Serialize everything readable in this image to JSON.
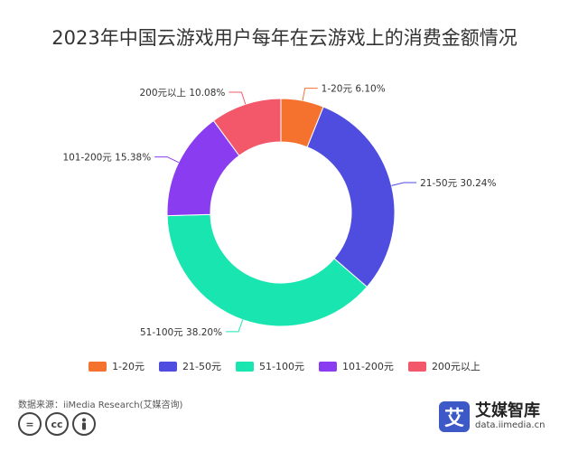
{
  "chart_data": {
    "type": "pie",
    "title": "2023年中国云游戏用户每年在云游戏上的消费金额情况",
    "donut": true,
    "categories": [
      "1-20元",
      "21-50元",
      "51-100元",
      "101-200元",
      "200元以上"
    ],
    "values": [
      6.1,
      30.24,
      38.2,
      15.38,
      10.08
    ],
    "value_labels": [
      "1-20元 6.10%",
      "21-50元 30.24%",
      "51-100元 38.20%",
      "101-200元 15.38%",
      "200元以上 10.08%"
    ],
    "colors": [
      "#f4712e",
      "#4e4de0",
      "#19e5b0",
      "#8a3cf0",
      "#f2586a"
    ],
    "legend_position": "bottom"
  },
  "footer": {
    "source": "数据来源：iiMedia Research(艾媒咨询)",
    "cc_icons": [
      "equals-icon",
      "cc-icon",
      "person-icon"
    ],
    "brand_logo_char": "艾",
    "brand_name": "艾媒智库",
    "brand_url": "data.iimedia.cn"
  }
}
